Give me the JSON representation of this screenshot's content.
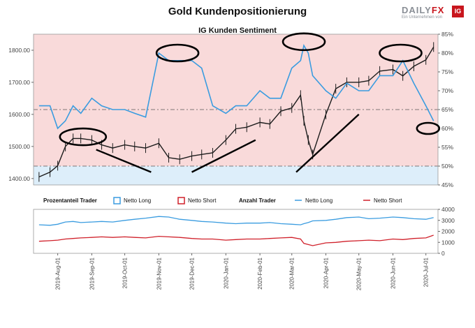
{
  "header": {
    "title": "Gold Kundenpositionierung",
    "subtitle": "IG Kunden Sentiment",
    "brand_daily": "DAILY",
    "brand_fx": "FX",
    "brand_tagline": "Ein Unternehmen von",
    "brand_ig": "IG"
  },
  "colors": {
    "price": "#1c1c1c",
    "long": "#3a9ce0",
    "short": "#d0202a",
    "zone_short": "#f9dada",
    "zone_long": "#ddeefa",
    "annotation": "#000000"
  },
  "chart_data": [
    {
      "type": "line",
      "name": "price-sentiment",
      "title": "IG Kunden Sentiment",
      "x": [
        "2019-07-15",
        "2019-07-25",
        "2019-08-01",
        "2019-08-08",
        "2019-08-15",
        "2019-08-22",
        "2019-09-01",
        "2019-09-10",
        "2019-09-20",
        "2019-10-01",
        "2019-10-10",
        "2019-10-20",
        "2019-11-01",
        "2019-11-10",
        "2019-11-20",
        "2019-12-01",
        "2019-12-10",
        "2019-12-20",
        "2020-01-01",
        "2020-01-10",
        "2020-01-20",
        "2020-02-01",
        "2020-02-10",
        "2020-02-20",
        "2020-03-01",
        "2020-03-09",
        "2020-03-12",
        "2020-03-16",
        "2020-03-20",
        "2020-04-01",
        "2020-04-10",
        "2020-04-20",
        "2020-05-01",
        "2020-05-10",
        "2020-05-20",
        "2020-06-01",
        "2020-06-10",
        "2020-06-20",
        "2020-07-01",
        "2020-07-08"
      ],
      "series": [
        {
          "name": "Gold",
          "axis": "left",
          "values": [
            1405,
            1420,
            1440,
            1500,
            1525,
            1525,
            1520,
            1505,
            1495,
            1505,
            1500,
            1495,
            1510,
            1465,
            1460,
            1470,
            1475,
            1480,
            1520,
            1555,
            1560,
            1575,
            1570,
            1610,
            1620,
            1660,
            1580,
            1520,
            1475,
            1600,
            1680,
            1700,
            1700,
            1705,
            1735,
            1740,
            1720,
            1750,
            1770,
            1810
          ]
        },
        {
          "name": "Netto Long",
          "axis": "right",
          "values": [
            66,
            66,
            60,
            62,
            66,
            64,
            68,
            66,
            65,
            65,
            64,
            63,
            80,
            78,
            78,
            78,
            76,
            66,
            64,
            66,
            66,
            70,
            68,
            68,
            76,
            78,
            82,
            80,
            74,
            70,
            68,
            72,
            70,
            70,
            74,
            74,
            78,
            72,
            66,
            62
          ]
        }
      ],
      "ylim_left": [
        1380,
        1850
      ],
      "ylim_right": [
        45,
        85
      ],
      "yticks_left": [
        "1400.00",
        "1500.00",
        "1600.00",
        "1700.00",
        "1800.00"
      ],
      "yticks_right": [
        "45%",
        "50%",
        "55%",
        "60%",
        "65%",
        "70%",
        "75%",
        "80%",
        "85%"
      ],
      "sentiment_threshold": 50,
      "reference_lines": [
        50,
        65
      ],
      "annotations": [
        {
          "kind": "ellipse",
          "period": "2019-08-24",
          "value": 1530
        },
        {
          "kind": "ellipse",
          "period": "2019-11-18",
          "value": 80
        },
        {
          "kind": "ellipse",
          "period": "2020-03-12",
          "value": 83
        },
        {
          "kind": "ellipse",
          "period": "2020-06-08",
          "value": 80
        },
        {
          "kind": "ellipse",
          "period": "2020-07-03",
          "value": 60
        },
        {
          "kind": "trendline",
          "from": [
            "2019-09-05",
            1490
          ],
          "to": [
            "2019-10-25",
            1420
          ]
        },
        {
          "kind": "trendline",
          "from": [
            "2019-12-01",
            1420
          ],
          "to": [
            "2020-01-28",
            1520
          ]
        },
        {
          "kind": "trendline",
          "from": [
            "2020-03-05",
            1420
          ],
          "to": [
            "2020-05-01",
            1600
          ]
        }
      ]
    },
    {
      "type": "line",
      "name": "trader-count",
      "x_ticks": [
        "2019-Aug-01",
        "2019-Sep-01",
        "2019-Oct-01",
        "2019-Nov-01",
        "2019-Dec-01",
        "2020-Jan-01",
        "2020-Feb-01",
        "2020-Mar-01",
        "2020-Apr-01",
        "2020-May-01",
        "2020-Jun-01",
        "2020-Jul-01"
      ],
      "legend": {
        "percent_label": "Prozentanteil Trader",
        "count_label": "Anzahl Trader",
        "long_label": "Netto Long",
        "short_label": "Netto Short"
      },
      "series": [
        {
          "name": "Netto Long",
          "values": [
            2600,
            2550,
            2650,
            2850,
            2900,
            2800,
            2850,
            2900,
            2850,
            3000,
            3100,
            3200,
            3350,
            3300,
            3100,
            3000,
            2900,
            2850,
            2750,
            2700,
            2750,
            2750,
            2800,
            2700,
            2650,
            2600,
            2700,
            2800,
            2950,
            3000,
            3100,
            3250,
            3300,
            3150,
            3200,
            3300,
            3250,
            3150,
            3100,
            3250
          ]
        },
        {
          "name": "Netto Short",
          "values": [
            1100,
            1150,
            1200,
            1300,
            1350,
            1400,
            1450,
            1500,
            1450,
            1500,
            1450,
            1400,
            1550,
            1500,
            1450,
            1350,
            1300,
            1300,
            1200,
            1250,
            1300,
            1300,
            1350,
            1400,
            1450,
            1300,
            900,
            800,
            700,
            950,
            1000,
            1100,
            1150,
            1200,
            1150,
            1300,
            1250,
            1350,
            1400,
            1650
          ]
        }
      ],
      "ylim": [
        0,
        4000
      ],
      "yticks": [
        "0",
        "1000",
        "2000",
        "3000",
        "4000"
      ]
    }
  ]
}
